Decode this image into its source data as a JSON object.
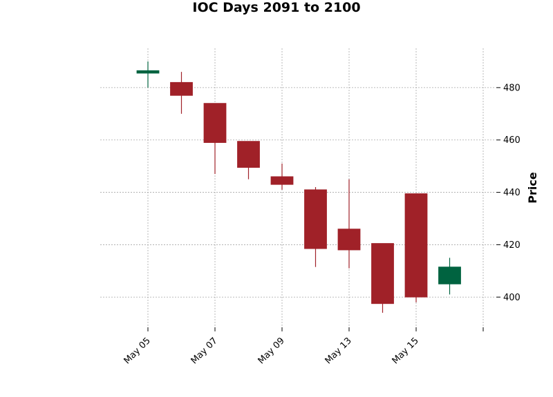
{
  "chart_data": {
    "type": "candlestick",
    "title": "IOC Days 2091 to 2100",
    "ylabel": "Price",
    "xlabel": "",
    "ylim": [
      389,
      495
    ],
    "yticks": [
      400,
      420,
      440,
      460,
      480
    ],
    "xticks": [
      "May 05",
      "May 07",
      "May 09",
      "May 13",
      "May 15"
    ],
    "grid": true,
    "colors": {
      "up": "#006340",
      "down": "#a02128"
    },
    "candles": [
      {
        "date": "May 05",
        "open": 485.5,
        "high": 490,
        "low": 480,
        "close": 486.5
      },
      {
        "date": "May 06",
        "open": 482,
        "high": 486,
        "low": 470,
        "close": 477
      },
      {
        "date": "May 07",
        "open": 474,
        "high": 474,
        "low": 447,
        "close": 459
      },
      {
        "date": "May 08",
        "open": 459.5,
        "high": 459.5,
        "low": 445,
        "close": 449.5
      },
      {
        "date": "May 09",
        "open": 446,
        "high": 451,
        "low": 441,
        "close": 443
      },
      {
        "date": "May 12",
        "open": 441,
        "high": 442,
        "low": 411.5,
        "close": 418.5
      },
      {
        "date": "May 13",
        "open": 426,
        "high": 445,
        "low": 411,
        "close": 418
      },
      {
        "date": "May 14",
        "open": 420.5,
        "high": 420.5,
        "low": 394,
        "close": 397.5
      },
      {
        "date": "May 15",
        "open": 439.5,
        "high": 439.5,
        "low": 398,
        "close": 400
      },
      {
        "date": "May 16",
        "open": 405,
        "high": 415,
        "low": 401,
        "close": 411.5
      }
    ]
  }
}
